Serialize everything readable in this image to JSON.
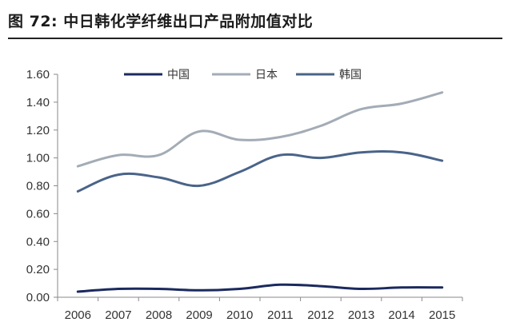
{
  "figure_title": "图 72:  中日韩化学纤维出口产品附加值对比",
  "chart_data": {
    "type": "line",
    "title": "中日韩化学纤维出口产品附加值对比",
    "xlabel": "",
    "ylabel": "",
    "categories": [
      "2006",
      "2007",
      "2008",
      "2009",
      "2010",
      "2011",
      "2012",
      "2013",
      "2014",
      "2015"
    ],
    "ylim": [
      0,
      1.6
    ],
    "yticks": [
      "0.00",
      "0.20",
      "0.40",
      "0.60",
      "0.80",
      "1.00",
      "1.20",
      "1.40",
      "1.60"
    ],
    "legend_position": "top",
    "grid": false,
    "series": [
      {
        "name": "中国",
        "color": "#1b2a5e",
        "values": [
          0.04,
          0.06,
          0.06,
          0.05,
          0.06,
          0.09,
          0.08,
          0.06,
          0.07,
          0.07
        ]
      },
      {
        "name": "日本",
        "color": "#a3acb6",
        "values": [
          0.94,
          1.02,
          1.02,
          1.19,
          1.13,
          1.15,
          1.23,
          1.35,
          1.39,
          1.47
        ]
      },
      {
        "name": "韩国",
        "color": "#4a6489",
        "values": [
          0.76,
          0.88,
          0.86,
          0.8,
          0.9,
          1.02,
          1.0,
          1.04,
          1.04,
          0.98
        ]
      }
    ]
  }
}
